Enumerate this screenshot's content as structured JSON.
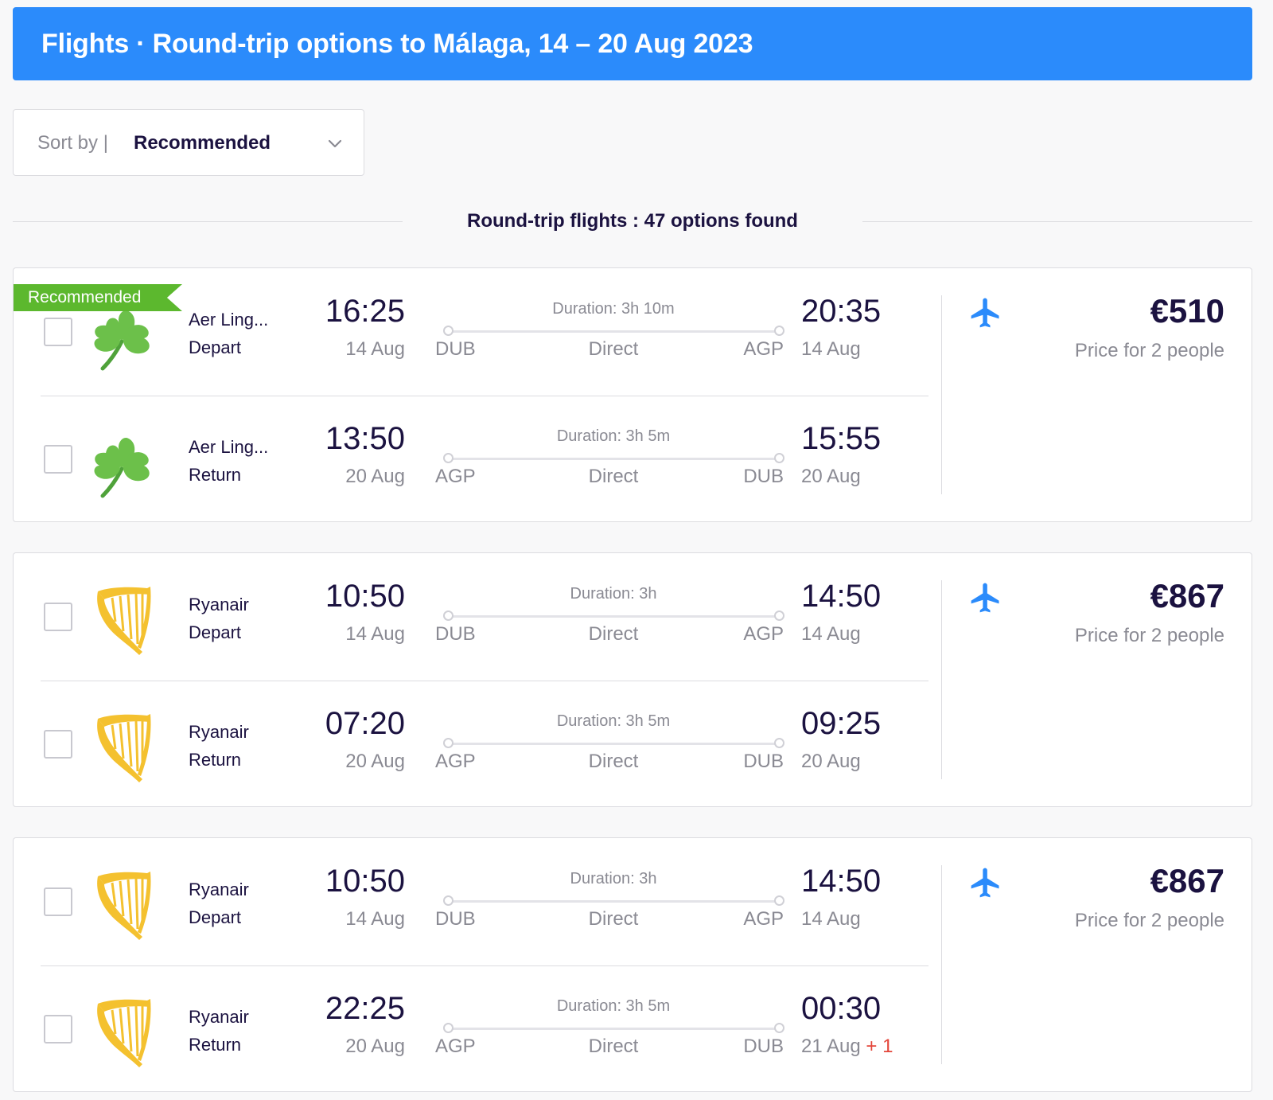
{
  "header": {
    "title": "Flights · Round-trip options to Málaga, 14 – 20 Aug 2023"
  },
  "sort": {
    "label": "Sort by |",
    "value": "Recommended"
  },
  "results": {
    "text": "Round-trip flights : 47 options found"
  },
  "colors": {
    "accent": "#2b8bfb",
    "recommended": "#5cb82e",
    "next_day": "#e3453a"
  },
  "cards": [
    {
      "badge": "Recommended",
      "price": "€510",
      "price_note": "Price for 2 people",
      "legs": [
        {
          "airline": "Aer Ling...",
          "direction": "Depart",
          "logo": "shamrock-icon",
          "dep_time": "16:25",
          "dep_date": "14 Aug",
          "from": "DUB",
          "duration": "Duration: 3h 10m",
          "stops": "Direct",
          "to": "AGP",
          "arr_time": "20:35",
          "arr_date": "14 Aug",
          "plus": ""
        },
        {
          "airline": "Aer Ling...",
          "direction": "Return",
          "logo": "shamrock-icon",
          "dep_time": "13:50",
          "dep_date": "20 Aug",
          "from": "AGP",
          "duration": "Duration: 3h 5m",
          "stops": "Direct",
          "to": "DUB",
          "arr_time": "15:55",
          "arr_date": "20 Aug",
          "plus": ""
        }
      ]
    },
    {
      "badge": "",
      "price": "€867",
      "price_note": "Price for 2 people",
      "legs": [
        {
          "airline": "Ryanair",
          "direction": "Depart",
          "logo": "harp-icon",
          "dep_time": "10:50",
          "dep_date": "14 Aug",
          "from": "DUB",
          "duration": "Duration: 3h",
          "stops": "Direct",
          "to": "AGP",
          "arr_time": "14:50",
          "arr_date": "14 Aug",
          "plus": ""
        },
        {
          "airline": "Ryanair",
          "direction": "Return",
          "logo": "harp-icon",
          "dep_time": "07:20",
          "dep_date": "20 Aug",
          "from": "AGP",
          "duration": "Duration: 3h 5m",
          "stops": "Direct",
          "to": "DUB",
          "arr_time": "09:25",
          "arr_date": "20 Aug",
          "plus": ""
        }
      ]
    },
    {
      "badge": "",
      "price": "€867",
      "price_note": "Price for 2 people",
      "legs": [
        {
          "airline": "Ryanair",
          "direction": "Depart",
          "logo": "harp-icon",
          "dep_time": "10:50",
          "dep_date": "14 Aug",
          "from": "DUB",
          "duration": "Duration: 3h",
          "stops": "Direct",
          "to": "AGP",
          "arr_time": "14:50",
          "arr_date": "14 Aug",
          "plus": ""
        },
        {
          "airline": "Ryanair",
          "direction": "Return",
          "logo": "harp-icon",
          "dep_time": "22:25",
          "dep_date": "20 Aug",
          "from": "AGP",
          "duration": "Duration: 3h 5m",
          "stops": "Direct",
          "to": "DUB",
          "arr_time": "00:30",
          "arr_date": "21 Aug",
          "plus": "+ 1"
        }
      ]
    }
  ]
}
